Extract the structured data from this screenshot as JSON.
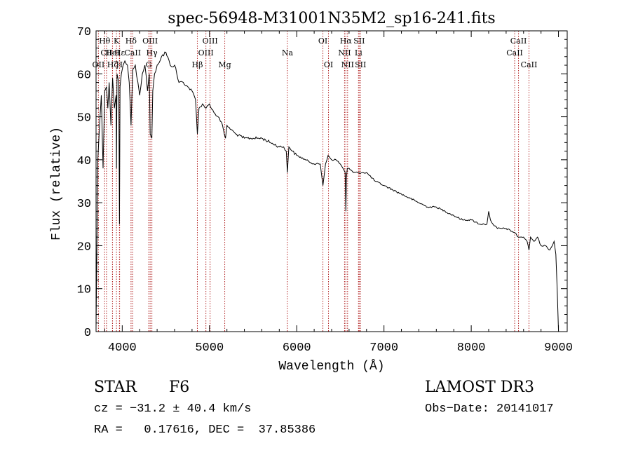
{
  "chart_data": {
    "type": "line",
    "title": "spec-56948-M31001N35M2_sp16-241.fits",
    "xlabel": "Wavelength (Å)",
    "ylabel": "Flux (relative)",
    "xlim": [
      3700,
      9100
    ],
    "ylim": [
      0,
      70
    ],
    "xticks": [
      4000,
      5000,
      6000,
      7000,
      8000,
      9000
    ],
    "yticks": [
      0,
      10,
      20,
      30,
      40,
      50,
      60,
      70
    ],
    "series": [
      {
        "name": "flux",
        "color": "#000000",
        "x": [
          3700,
          3720,
          3740,
          3760,
          3780,
          3800,
          3820,
          3835,
          3850,
          3870,
          3890,
          3910,
          3930,
          3934,
          3940,
          3960,
          3968,
          3975,
          3990,
          4010,
          4030,
          4060,
          4080,
          4101,
          4120,
          4150,
          4180,
          4200,
          4230,
          4260,
          4290,
          4310,
          4320,
          4340,
          4350,
          4370,
          4400,
          4450,
          4500,
          4550,
          4600,
          4650,
          4700,
          4750,
          4800,
          4840,
          4861,
          4880,
          4920,
          4960,
          5000,
          5050,
          5100,
          5150,
          5170,
          5183,
          5200,
          5250,
          5300,
          5400,
          5500,
          5600,
          5700,
          5800,
          5850,
          5880,
          5893,
          5910,
          5950,
          6000,
          6100,
          6200,
          6270,
          6300,
          6330,
          6360,
          6400,
          6450,
          6500,
          6530,
          6555,
          6563,
          6570,
          6580,
          6600,
          6650,
          6700,
          6750,
          6800,
          6900,
          7000,
          7100,
          7200,
          7300,
          7400,
          7500,
          7600,
          7700,
          7800,
          7900,
          8000,
          8100,
          8150,
          8180,
          8200,
          8220,
          8250,
          8300,
          8400,
          8500,
          8540,
          8560,
          8600,
          8640,
          8662,
          8680,
          8720,
          8760,
          8800,
          8850,
          8900,
          8930,
          8950,
          8970,
          8985,
          9000
        ],
        "y": [
          1,
          40,
          48,
          55,
          38,
          56,
          57,
          52,
          58,
          48,
          59,
          52,
          55,
          38,
          60,
          58,
          25,
          57,
          60,
          62,
          63,
          62,
          58,
          48,
          61,
          62,
          58,
          55,
          60,
          62,
          56,
          60,
          46,
          45,
          56,
          60,
          62,
          64,
          65,
          62,
          62,
          58,
          58,
          57,
          56,
          54,
          46,
          52,
          53,
          52,
          53,
          51,
          50,
          48,
          46,
          45,
          48,
          47,
          46,
          45,
          45,
          45,
          44,
          43,
          43,
          42,
          37,
          43,
          42,
          41,
          40,
          39,
          39,
          34,
          39,
          41,
          40,
          40,
          39,
          38,
          37,
          28,
          36,
          38,
          38,
          37,
          37,
          37,
          37,
          35,
          34,
          33,
          32,
          31,
          30,
          29,
          29,
          28,
          27,
          26,
          26,
          25,
          25,
          25,
          28,
          26,
          25,
          24,
          24,
          23,
          22,
          22,
          22,
          21,
          19,
          22,
          21,
          22,
          20,
          20,
          19,
          20,
          21,
          18,
          10,
          0
        ]
      }
    ],
    "lines": [
      {
        "label": "OII",
        "x": 3727,
        "row": 3
      },
      {
        "label": "Hθ",
        "x": 3798,
        "row": 1
      },
      {
        "label": "CII",
        "x": 3820,
        "row": 2
      },
      {
        "label": "HeI",
        "x": 3888,
        "row": 2
      },
      {
        "label": "Hζ",
        "x": 3889,
        "row": 3
      },
      {
        "label": "K",
        "x": 3934,
        "row": 1
      },
      {
        "label": "H",
        "x": 3968,
        "row": 3
      },
      {
        "label": "Hε",
        "x": 3970,
        "row": 2
      },
      {
        "label": "Hδ",
        "x": 4101,
        "row": 1
      },
      {
        "label": "CaII",
        "x": 4120,
        "row": 2
      },
      {
        "label": "OIII",
        "x": 4320,
        "row": 1
      },
      {
        "label": "Hγ",
        "x": 4340,
        "row": 2
      },
      {
        "label": "G",
        "x": 4304,
        "row": 3
      },
      {
        "label": "Hβ",
        "x": 4861,
        "row": 3
      },
      {
        "label": "OIII",
        "x": 4959,
        "row": 2
      },
      {
        "label": "OIII",
        "x": 5007,
        "row": 1
      },
      {
        "label": "Mg",
        "x": 5175,
        "row": 3
      },
      {
        "label": "Na",
        "x": 5893,
        "row": 2
      },
      {
        "label": "OI",
        "x": 6300,
        "row": 1
      },
      {
        "label": "OI",
        "x": 6364,
        "row": 3
      },
      {
        "label": "NII",
        "x": 6548,
        "row": 2
      },
      {
        "label": "Hα",
        "x": 6563,
        "row": 1
      },
      {
        "label": "NII",
        "x": 6583,
        "row": 3
      },
      {
        "label": "SII",
        "x": 6716,
        "row": 1
      },
      {
        "label": "Li",
        "x": 6708,
        "row": 2
      },
      {
        "label": "SII",
        "x": 6731,
        "row": 3
      },
      {
        "label": "CaII",
        "x": 8498,
        "row": 2
      },
      {
        "label": "CaII",
        "x": 8542,
        "row": 1
      },
      {
        "label": "CaII",
        "x": 8662,
        "row": 3
      }
    ],
    "line_color": "#b22222"
  },
  "info": {
    "object_class": "STAR",
    "subclass": "F6",
    "survey": "LAMOST DR3",
    "cz": "cz = −31.2 ± 40.4 km/s",
    "obs_date": "Obs−Date: 20141017",
    "coords": "RA =   0.17616, DEC =  37.85386"
  }
}
